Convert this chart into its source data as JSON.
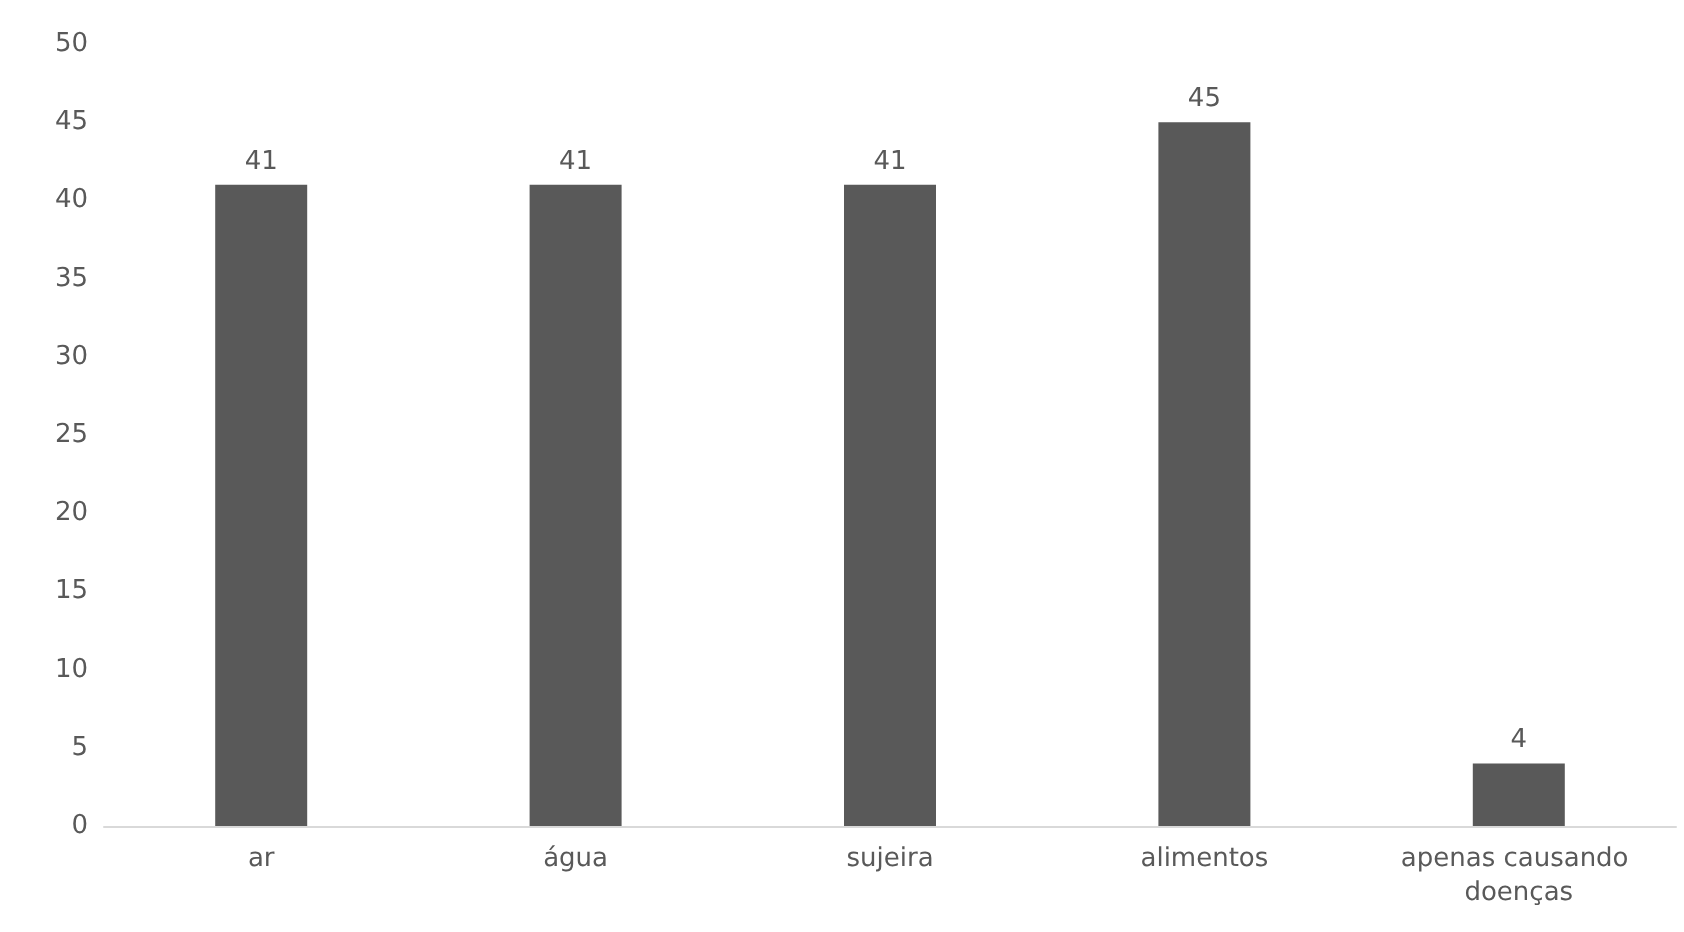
{
  "chart_data": {
    "type": "bar",
    "categories": [
      "ar",
      "água",
      "sujeira",
      "alimentos",
      "apenas causando doenças"
    ],
    "values": [
      41,
      41,
      41,
      45,
      4
    ],
    "color": "#595959",
    "ylim": [
      0,
      50
    ],
    "yticks": [
      0,
      5,
      10,
      15,
      20,
      25,
      30,
      35,
      40,
      45,
      50
    ],
    "grid": false,
    "data_labels": true
  }
}
